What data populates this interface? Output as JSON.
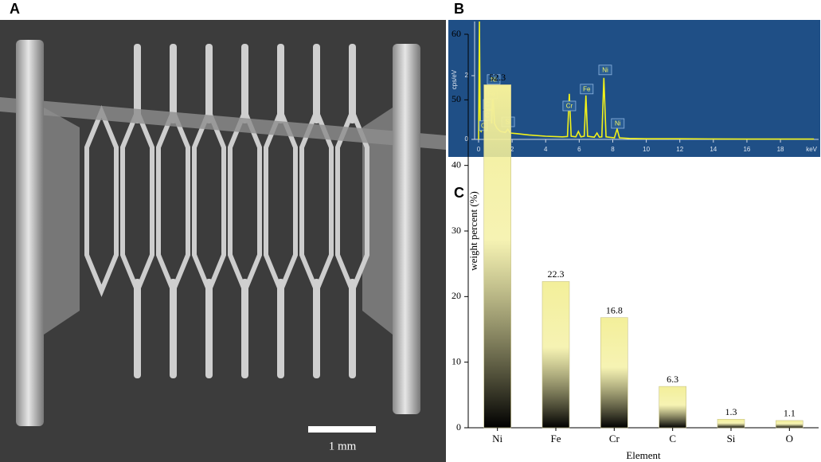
{
  "figure": {
    "panel_labels": [
      "A",
      "B",
      "C"
    ],
    "scale_bar": "1 mm"
  },
  "chart_data": [
    {
      "type": "line",
      "ylabel": "cps/eV",
      "xlabel": "keV",
      "color": "#f2f21a",
      "background": "#1f4f86",
      "x": [
        0,
        0.05,
        0.1,
        0.15,
        0.2,
        0.28,
        0.35,
        0.45,
        0.52,
        0.6,
        0.7,
        0.78,
        0.85,
        0.95,
        1.1,
        1.3,
        1.6,
        1.74,
        1.9,
        2.3,
        3,
        4,
        5,
        5.3,
        5.41,
        5.52,
        5.8,
        5.95,
        6.1,
        6.3,
        6.4,
        6.5,
        6.9,
        7.06,
        7.2,
        7.35,
        7.47,
        7.6,
        8.1,
        8.26,
        8.4,
        9,
        10,
        12,
        14,
        16,
        18,
        20
      ],
      "values": [
        0,
        3.7,
        0.3,
        0.25,
        0.3,
        0.45,
        0.3,
        0.7,
        0.95,
        0.6,
        1.3,
        0.5,
        1.5,
        0.5,
        0.35,
        0.25,
        0.22,
        0.32,
        0.2,
        0.18,
        0.14,
        0.1,
        0.08,
        0.09,
        1.43,
        0.1,
        0.08,
        0.25,
        0.08,
        0.1,
        1.38,
        0.1,
        0.07,
        0.2,
        0.07,
        0.08,
        1.93,
        0.08,
        0.05,
        0.33,
        0.05,
        0.03,
        0.02,
        0.02,
        0.015,
        0.01,
        0.01,
        0.01
      ],
      "xlim": [
        0,
        20.3
      ],
      "ylim": [
        0,
        3.7
      ],
      "xticks": [
        0,
        2,
        4,
        6,
        8,
        10,
        12,
        14,
        16,
        18
      ],
      "yticks": [
        0,
        2
      ],
      "annotations": [
        {
          "text": "C",
          "x": 0.28,
          "y": 0.43
        },
        {
          "text": "C",
          "x": 0.52,
          "y": 0.75
        },
        {
          "text": "C",
          "x": 0.52,
          "y": 1.1
        },
        {
          "text": "Fe",
          "x": 0.76,
          "y": 1.43
        },
        {
          "text": "Ni",
          "x": 0.9,
          "y": 1.88
        },
        {
          "text": "Si",
          "x": 1.76,
          "y": 0.55
        },
        {
          "text": "Cr",
          "x": 5.41,
          "y": 1.05
        },
        {
          "text": "Fe",
          "x": 6.45,
          "y": 1.58
        },
        {
          "text": "Ni",
          "x": 7.55,
          "y": 2.18
        },
        {
          "text": "Ni",
          "x": 8.3,
          "y": 0.5
        }
      ]
    },
    {
      "type": "bar",
      "ylabel": "weight percent (%)",
      "xlabel": "Element",
      "color": "#f3ef9a",
      "categories": [
        "Ni",
        "Fe",
        "Cr",
        "C",
        "Si",
        "O"
      ],
      "values": [
        52.3,
        22.3,
        16.8,
        6.3,
        1.3,
        1.1
      ],
      "ylim": [
        0,
        60
      ],
      "yticks": [
        0,
        10,
        20,
        30,
        40,
        50,
        60
      ]
    }
  ]
}
